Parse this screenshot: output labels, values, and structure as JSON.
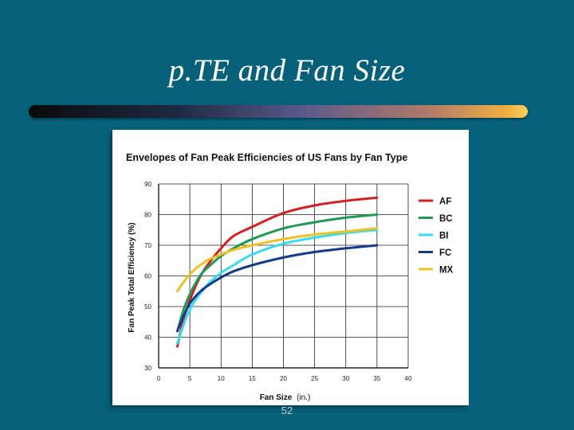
{
  "slide": {
    "title": "p.TE and Fan Size",
    "page_number": "52"
  },
  "colors": {
    "background": "#06607a",
    "title_text": "#ffffff"
  },
  "chart_data": {
    "type": "line",
    "title": "Envelopes of Fan Peak Efficiencies of US Fans by Fan Type",
    "xlabel": "Fan Size",
    "xlabel_unit": "(in.)",
    "ylabel": "Fan Peak Total Efficiency (%)",
    "xlim": [
      0,
      40
    ],
    "ylim": [
      30,
      90
    ],
    "xticks": [
      0,
      5,
      10,
      15,
      20,
      25,
      30,
      35,
      40
    ],
    "yticks": [
      30,
      40,
      50,
      60,
      70,
      80,
      90
    ],
    "grid": true,
    "legend_position": "right",
    "series": [
      {
        "name": "AF",
        "color": "#d42020",
        "x": [
          3,
          4,
          5,
          6,
          7,
          8,
          10,
          12,
          15,
          20,
          25,
          30,
          35
        ],
        "y": [
          37,
          46,
          52,
          57,
          61,
          64,
          69,
          73,
          76,
          80.5,
          83,
          84.5,
          85.5
        ]
      },
      {
        "name": "BC",
        "color": "#1e9a52",
        "x": [
          3,
          4,
          5,
          6,
          7,
          8,
          10,
          12,
          15,
          20,
          25,
          30,
          35
        ],
        "y": [
          42,
          49,
          54,
          58,
          61,
          63,
          66.5,
          69,
          72,
          75.5,
          77.5,
          79,
          80
        ]
      },
      {
        "name": "BI",
        "color": "#33ddee",
        "x": [
          3,
          4,
          5,
          6,
          7,
          8,
          10,
          12,
          15,
          20,
          25,
          30,
          35
        ],
        "y": [
          38,
          44,
          49,
          52.5,
          55,
          57.5,
          61,
          63.5,
          67,
          70.5,
          72.5,
          74,
          75
        ]
      },
      {
        "name": "FC",
        "color": "#14388a",
        "x": [
          3,
          4,
          5,
          6,
          7,
          8,
          10,
          12,
          15,
          20,
          25,
          30,
          35
        ],
        "y": [
          42,
          47,
          51,
          53.5,
          55.5,
          57,
          59.5,
          61.5,
          63.5,
          66,
          67.8,
          69,
          70
        ]
      },
      {
        "name": "MX",
        "color": "#f0c020",
        "x": [
          3,
          4,
          5,
          6,
          7,
          8,
          10,
          12,
          15,
          20,
          25,
          30,
          35
        ],
        "y": [
          55,
          58,
          60.5,
          62.5,
          64,
          65.3,
          67,
          68.5,
          70,
          72,
          73.5,
          74.5,
          75.5
        ]
      }
    ]
  }
}
